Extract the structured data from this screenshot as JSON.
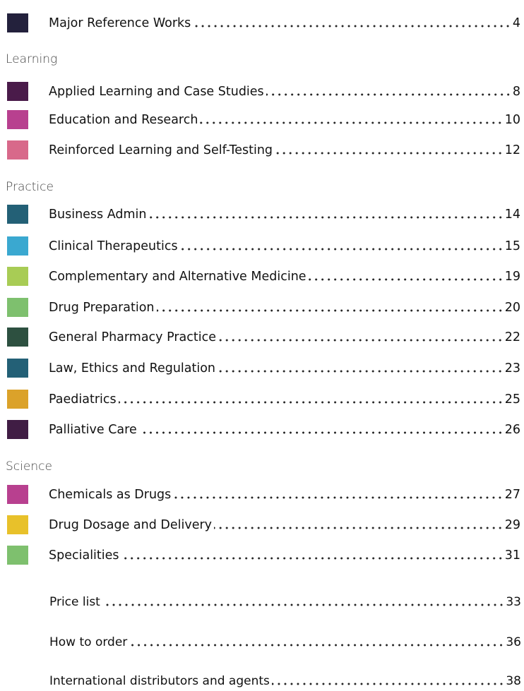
{
  "top": {
    "title": "Major Reference Works",
    "page": 4
  },
  "sections": [
    {
      "heading": "Learning",
      "items": [
        {
          "title": "Applied Learning and Case Studies",
          "page": 8
        },
        {
          "title": "Education and Research",
          "page": 10
        },
        {
          "title": "Reinforced Learning and Self-Testing",
          "page": 12
        }
      ]
    },
    {
      "heading": "Practice",
      "items": [
        {
          "title": "Business Admin",
          "page": 14
        },
        {
          "title": "Clinical Therapeutics",
          "page": 15
        },
        {
          "title": "Complementary and Alternative Medicine",
          "page": 19
        },
        {
          "title": "Drug Preparation",
          "page": 20
        },
        {
          "title": "General Pharmacy Practice",
          "page": 22
        },
        {
          "title": "Law, Ethics and Regulation",
          "page": 23
        },
        {
          "title": "Paediatrics",
          "page": 25
        },
        {
          "title": "Palliative Care",
          "page": 26
        }
      ]
    },
    {
      "heading": "Science",
      "items": [
        {
          "title": "Chemicals as Drugs",
          "page": 27
        },
        {
          "title": "Drug Dosage and Delivery",
          "page": 29
        },
        {
          "title": "Specialities",
          "page": 31
        }
      ]
    }
  ],
  "extras": [
    {
      "title": "Price list",
      "page": 33
    },
    {
      "title": "How to order",
      "page": 36
    },
    {
      "title": "International distributors and agents",
      "page": 38
    }
  ]
}
